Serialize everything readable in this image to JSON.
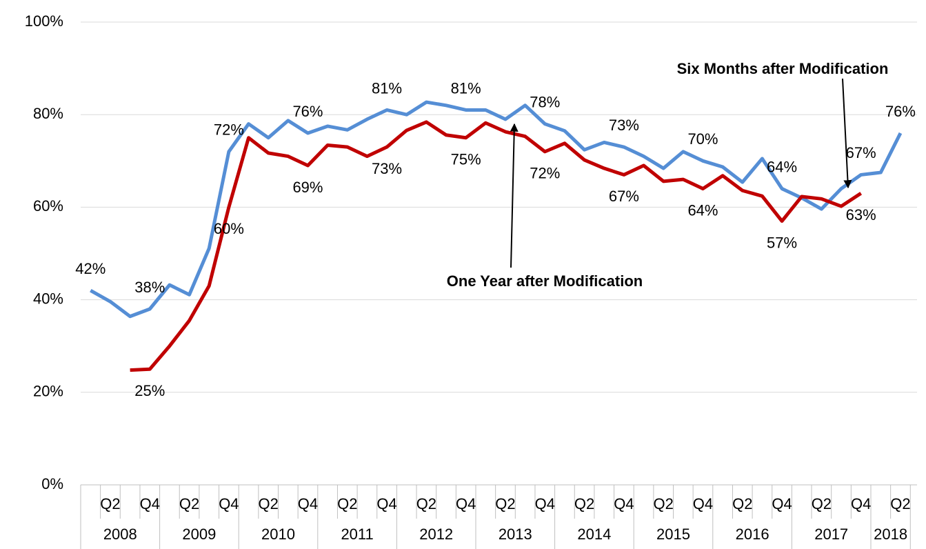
{
  "chart_data": {
    "type": "line",
    "categories": [
      null,
      "Q2",
      null,
      "Q4",
      null,
      "Q2",
      null,
      "Q4",
      null,
      "Q2",
      null,
      "Q4",
      null,
      "Q2",
      null,
      "Q4",
      null,
      "Q2",
      null,
      "Q4",
      null,
      "Q2",
      null,
      "Q4",
      null,
      "Q2",
      null,
      "Q4",
      null,
      "Q2",
      null,
      "Q4",
      null,
      "Q2",
      null,
      "Q4",
      null,
      "Q2",
      null,
      "Q4",
      null,
      "Q2"
    ],
    "years": [
      "2008",
      "2009",
      "2010",
      "2011",
      "2012",
      "2013",
      "2014",
      "2015",
      "2016",
      "2017",
      "2018"
    ],
    "series": [
      {
        "name": "Six Months after Modification",
        "color": "#558ed5",
        "values": [
          42,
          39.6,
          36.4,
          38,
          43.2,
          41.1,
          51.1,
          72,
          78,
          75,
          78.7,
          76,
          77.5,
          76.7,
          79,
          81,
          80,
          82.7,
          82,
          81,
          81,
          79,
          82,
          78,
          76.5,
          72.4,
          74,
          73,
          71,
          68.4,
          72,
          70,
          68.7,
          65.4,
          70.5,
          64,
          62,
          59.6,
          64,
          67,
          67.5,
          76
        ],
        "value_labels": [
          "42%",
          null,
          null,
          "38%",
          null,
          null,
          null,
          "72%",
          null,
          null,
          null,
          "76%",
          null,
          null,
          null,
          "81%",
          null,
          null,
          null,
          "81%",
          null,
          null,
          null,
          "78%",
          null,
          null,
          null,
          "73%",
          null,
          null,
          null,
          "70%",
          null,
          null,
          null,
          "64%",
          null,
          null,
          null,
          "67%",
          null,
          "76%"
        ]
      },
      {
        "name": "One Year after Modification",
        "color": "#c00000",
        "values": [
          null,
          null,
          24.8,
          25,
          30,
          35.5,
          43,
          60,
          75,
          71.7,
          71,
          69,
          73.4,
          73,
          71,
          73,
          76.6,
          78.4,
          75.6,
          75,
          78.2,
          76.3,
          75.3,
          72,
          73.8,
          70.2,
          68.4,
          67,
          69,
          65.6,
          66,
          64,
          66.8,
          63.6,
          62.4,
          57,
          62.3,
          61.8,
          60.2,
          63,
          null,
          null
        ],
        "value_labels": [
          null,
          null,
          null,
          "25%",
          null,
          null,
          null,
          "60%",
          null,
          null,
          null,
          "69%",
          null,
          null,
          null,
          "73%",
          null,
          null,
          null,
          "75%",
          null,
          null,
          null,
          "72%",
          null,
          null,
          null,
          "67%",
          null,
          null,
          null,
          "64%",
          null,
          null,
          null,
          "57%",
          null,
          null,
          null,
          "63%",
          null,
          null
        ]
      }
    ],
    "annotations": [
      "Six Months after Modification",
      "One Year after Modification"
    ],
    "ylim": [
      0,
      100
    ],
    "yticks": [
      {
        "value": 0,
        "label": "0%"
      },
      {
        "value": 20,
        "label": "20%"
      },
      {
        "value": 40,
        "label": "40%"
      },
      {
        "value": 60,
        "label": "60%"
      },
      {
        "value": 80,
        "label": "80%"
      },
      {
        "value": 100,
        "label": "100%"
      }
    ],
    "grid": true
  }
}
